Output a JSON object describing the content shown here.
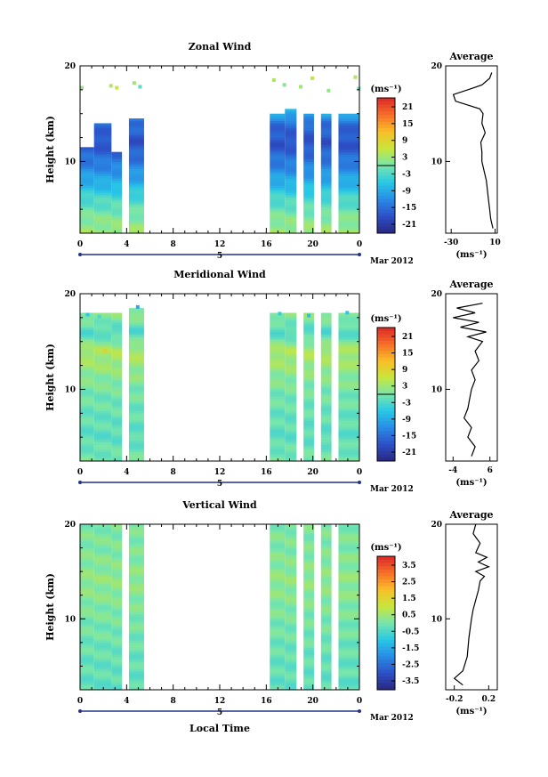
{
  "chart_data": [
    {
      "type": "heatmap",
      "title": "Zonal Wind",
      "ylabel": "Height (km)",
      "y_ticks": [
        "20",
        "10"
      ],
      "x_ticks": [
        "0",
        "4",
        "8",
        "12",
        "16",
        "20",
        "0"
      ],
      "date_label": "Mar 2012",
      "day_label": "5",
      "xlim": [
        0,
        24
      ],
      "ylim": [
        2.5,
        20
      ],
      "colorbar": {
        "unit_label": "(ms⁻¹)",
        "ticks": [
          "21",
          "15",
          "9",
          "3",
          "-3",
          "-9",
          "-15",
          "-21"
        ],
        "range": [
          -24,
          24
        ]
      },
      "average": {
        "title": "Average",
        "x_ticks": [
          "-30",
          "10"
        ],
        "xlim": [
          -35,
          12
        ],
        "y_ticks": [
          "20",
          "10"
        ],
        "xlabel": "(ms⁻¹)",
        "profile": [
          [
            8,
            3
          ],
          [
            6,
            4
          ],
          [
            5,
            5
          ],
          [
            4,
            6
          ],
          [
            3,
            7
          ],
          [
            2,
            8
          ],
          [
            0,
            9
          ],
          [
            -2,
            10
          ],
          [
            -2,
            11
          ],
          [
            -3,
            12
          ],
          [
            1,
            13
          ],
          [
            -2,
            14
          ],
          [
            -1,
            15
          ],
          [
            -4,
            15.5
          ],
          [
            -26,
            16.3
          ],
          [
            -28,
            17
          ],
          [
            -15,
            17.5
          ],
          [
            -2,
            18
          ],
          [
            5,
            18.7
          ],
          [
            7,
            19.3
          ]
        ]
      },
      "blocks": [
        {
          "t0": 0.0,
          "t1": 1.2,
          "h0": 2.5,
          "h1": 11.5
        },
        {
          "t0": 1.2,
          "t1": 2.7,
          "h0": 2.5,
          "h1": 14.0
        },
        {
          "t0": 2.7,
          "t1": 3.6,
          "h0": 2.5,
          "h1": 11.0
        },
        {
          "t0": 4.2,
          "t1": 5.5,
          "h0": 2.5,
          "h1": 14.5
        },
        {
          "t0": 16.3,
          "t1": 17.6,
          "h0": 2.5,
          "h1": 15.0
        },
        {
          "t0": 17.6,
          "t1": 18.6,
          "h0": 2.5,
          "h1": 15.5
        },
        {
          "t0": 19.2,
          "t1": 20.1,
          "h0": 2.5,
          "h1": 15.0
        },
        {
          "t0": 20.7,
          "t1": 21.6,
          "h0": 2.5,
          "h1": 15.0
        },
        {
          "t0": 22.2,
          "t1": 24.0,
          "h0": 2.5,
          "h1": 15.0
        }
      ],
      "profile_model": [
        [
          2.5,
          3
        ],
        [
          4,
          1
        ],
        [
          6,
          -3
        ],
        [
          8,
          -9
        ],
        [
          10,
          -14
        ],
        [
          12,
          -18
        ],
        [
          14,
          -15
        ],
        [
          15.5,
          -6
        ],
        [
          17,
          0
        ],
        [
          18,
          6
        ],
        [
          20,
          3
        ]
      ],
      "cells": [
        {
          "t": 0.0,
          "h": 17.5,
          "v": 2
        },
        {
          "t": 2.5,
          "h": 17.7,
          "v": 4
        },
        {
          "t": 3.0,
          "h": 17.5,
          "v": 6
        },
        {
          "t": 4.5,
          "h": 18.0,
          "v": 3
        },
        {
          "t": 5.0,
          "h": 17.6,
          "v": -2
        },
        {
          "t": 16.5,
          "h": 18.3,
          "v": 4
        },
        {
          "t": 17.4,
          "h": 17.8,
          "v": 1
        },
        {
          "t": 18.8,
          "h": 17.6,
          "v": 3
        },
        {
          "t": 19.8,
          "h": 18.5,
          "v": 5
        },
        {
          "t": 21.2,
          "h": 17.2,
          "v": 2
        },
        {
          "t": 23.5,
          "h": 18.6,
          "v": 4
        },
        {
          "t": 23.8,
          "h": 17.4,
          "v": -1
        }
      ],
      "contour_zero_h": 10.5
    },
    {
      "type": "heatmap",
      "title": "Meridional Wind",
      "ylabel": "Height (km)",
      "y_ticks": [
        "20",
        "10"
      ],
      "x_ticks": [
        "0",
        "4",
        "8",
        "12",
        "16",
        "20",
        "0"
      ],
      "date_label": "Mar 2012",
      "day_label": "5",
      "xlim": [
        0,
        24
      ],
      "ylim": [
        2.5,
        20
      ],
      "colorbar": {
        "unit_label": "(ms⁻¹)",
        "ticks": [
          "21",
          "15",
          "9",
          "3",
          "-3",
          "-9",
          "-15",
          "-21"
        ],
        "range": [
          -24,
          24
        ]
      },
      "average": {
        "title": "Average",
        "x_ticks": [
          "-4",
          "6"
        ],
        "xlim": [
          -6,
          8
        ],
        "y_ticks": [
          "20",
          "10"
        ],
        "xlabel": "(ms⁻¹)",
        "profile": [
          [
            1,
            3
          ],
          [
            2,
            4
          ],
          [
            0,
            5
          ],
          [
            1,
            6
          ],
          [
            -1,
            7
          ],
          [
            0,
            8
          ],
          [
            0.5,
            9
          ],
          [
            1,
            10
          ],
          [
            2,
            11
          ],
          [
            1,
            12
          ],
          [
            3,
            13
          ],
          [
            2,
            14
          ],
          [
            4,
            15
          ],
          [
            0,
            15.5
          ],
          [
            5,
            16
          ],
          [
            -2,
            16.5
          ],
          [
            3,
            17
          ],
          [
            -4,
            17.5
          ],
          [
            2,
            18
          ],
          [
            -3,
            18.5
          ],
          [
            4,
            19
          ]
        ]
      },
      "blocks": [
        {
          "t0": 0.0,
          "t1": 1.2,
          "h0": 2.5,
          "h1": 18.0
        },
        {
          "t0": 1.2,
          "t1": 2.7,
          "h0": 2.5,
          "h1": 18.0
        },
        {
          "t0": 2.7,
          "t1": 3.6,
          "h0": 2.5,
          "h1": 18.0
        },
        {
          "t0": 4.2,
          "t1": 5.5,
          "h0": 2.5,
          "h1": 18.5
        },
        {
          "t0": 16.3,
          "t1": 17.6,
          "h0": 2.5,
          "h1": 18.0
        },
        {
          "t0": 17.6,
          "t1": 18.6,
          "h0": 2.5,
          "h1": 18.0
        },
        {
          "t0": 19.2,
          "t1": 20.1,
          "h0": 2.5,
          "h1": 18.0
        },
        {
          "t0": 20.7,
          "t1": 21.6,
          "h0": 2.5,
          "h1": 18.0
        },
        {
          "t0": 22.2,
          "t1": 24.0,
          "h0": 2.5,
          "h1": 18.0
        }
      ],
      "profile_model": [
        [
          2.5,
          0
        ],
        [
          5,
          -2
        ],
        [
          8,
          -1
        ],
        [
          10,
          0
        ],
        [
          12,
          2
        ],
        [
          14,
          4
        ],
        [
          16,
          -3
        ],
        [
          18,
          2
        ],
        [
          20,
          0
        ]
      ],
      "cells": [
        {
          "t": 0.5,
          "h": 17.6,
          "v": -6
        },
        {
          "t": 1.5,
          "h": 17.4,
          "v": -3
        },
        {
          "t": 2.0,
          "h": 13.8,
          "v": 10
        },
        {
          "t": 4.8,
          "h": 18.4,
          "v": -9
        },
        {
          "t": 17.0,
          "h": 17.7,
          "v": -5
        },
        {
          "t": 19.5,
          "h": 17.5,
          "v": -7
        },
        {
          "t": 22.8,
          "h": 17.8,
          "v": -6
        }
      ],
      "contour_zero_h": 9.8
    },
    {
      "type": "heatmap",
      "title": "Vertical Wind",
      "ylabel": "Height (km)",
      "y_ticks": [
        "20",
        "10"
      ],
      "x_ticks": [
        "0",
        "4",
        "8",
        "12",
        "16",
        "20",
        "0"
      ],
      "date_label": "Mar 2012",
      "day_label": "5",
      "xlabel": "Local Time",
      "xlim": [
        0,
        24
      ],
      "ylim": [
        2.5,
        20
      ],
      "colorbar": {
        "unit_label": "(ms⁻¹)",
        "ticks": [
          "3.5",
          "2.5",
          "1.5",
          "0.5",
          "-0.5",
          "-1.5",
          "-2.5",
          "-3.5"
        ],
        "range": [
          -4,
          4
        ]
      },
      "average": {
        "title": "Average",
        "x_ticks": [
          "-0.2",
          "0.2"
        ],
        "xlim": [
          -0.3,
          0.3
        ],
        "y_ticks": [
          "20",
          "10"
        ],
        "xlabel": "(ms⁻¹)",
        "profile": [
          [
            -0.1,
            3
          ],
          [
            -0.2,
            3.7
          ],
          [
            -0.1,
            4.5
          ],
          [
            -0.05,
            6
          ],
          [
            -0.03,
            8
          ],
          [
            0,
            10
          ],
          [
            0.02,
            11
          ],
          [
            0.05,
            12
          ],
          [
            0.08,
            13
          ],
          [
            0.1,
            14
          ],
          [
            0.15,
            14.5
          ],
          [
            0.05,
            15
          ],
          [
            0.2,
            15.5
          ],
          [
            0.08,
            16
          ],
          [
            0.18,
            16.5
          ],
          [
            0.05,
            17
          ],
          [
            0.1,
            18
          ],
          [
            0.02,
            19
          ],
          [
            0.05,
            20
          ]
        ]
      },
      "blocks": [
        {
          "t0": 0.0,
          "t1": 1.2,
          "h0": 2.5,
          "h1": 20.0
        },
        {
          "t0": 1.2,
          "t1": 2.7,
          "h0": 2.5,
          "h1": 20.0
        },
        {
          "t0": 2.7,
          "t1": 3.6,
          "h0": 2.5,
          "h1": 20.0
        },
        {
          "t0": 4.2,
          "t1": 5.5,
          "h0": 2.5,
          "h1": 20.0
        },
        {
          "t0": 16.3,
          "t1": 17.6,
          "h0": 2.5,
          "h1": 20.0
        },
        {
          "t0": 17.6,
          "t1": 18.6,
          "h0": 2.5,
          "h1": 20.0
        },
        {
          "t0": 19.2,
          "t1": 20.1,
          "h0": 2.5,
          "h1": 20.0
        },
        {
          "t0": 20.7,
          "t1": 21.6,
          "h0": 2.5,
          "h1": 20.0
        },
        {
          "t0": 22.2,
          "t1": 24.0,
          "h0": 2.5,
          "h1": 20.0
        }
      ],
      "profile_model": [
        [
          2.5,
          -0.3
        ],
        [
          6,
          -0.2
        ],
        [
          10,
          0
        ],
        [
          14,
          0.3
        ],
        [
          17,
          0.1
        ],
        [
          20,
          0.05
        ]
      ],
      "cells": [],
      "contour_zero_h": null
    }
  ]
}
